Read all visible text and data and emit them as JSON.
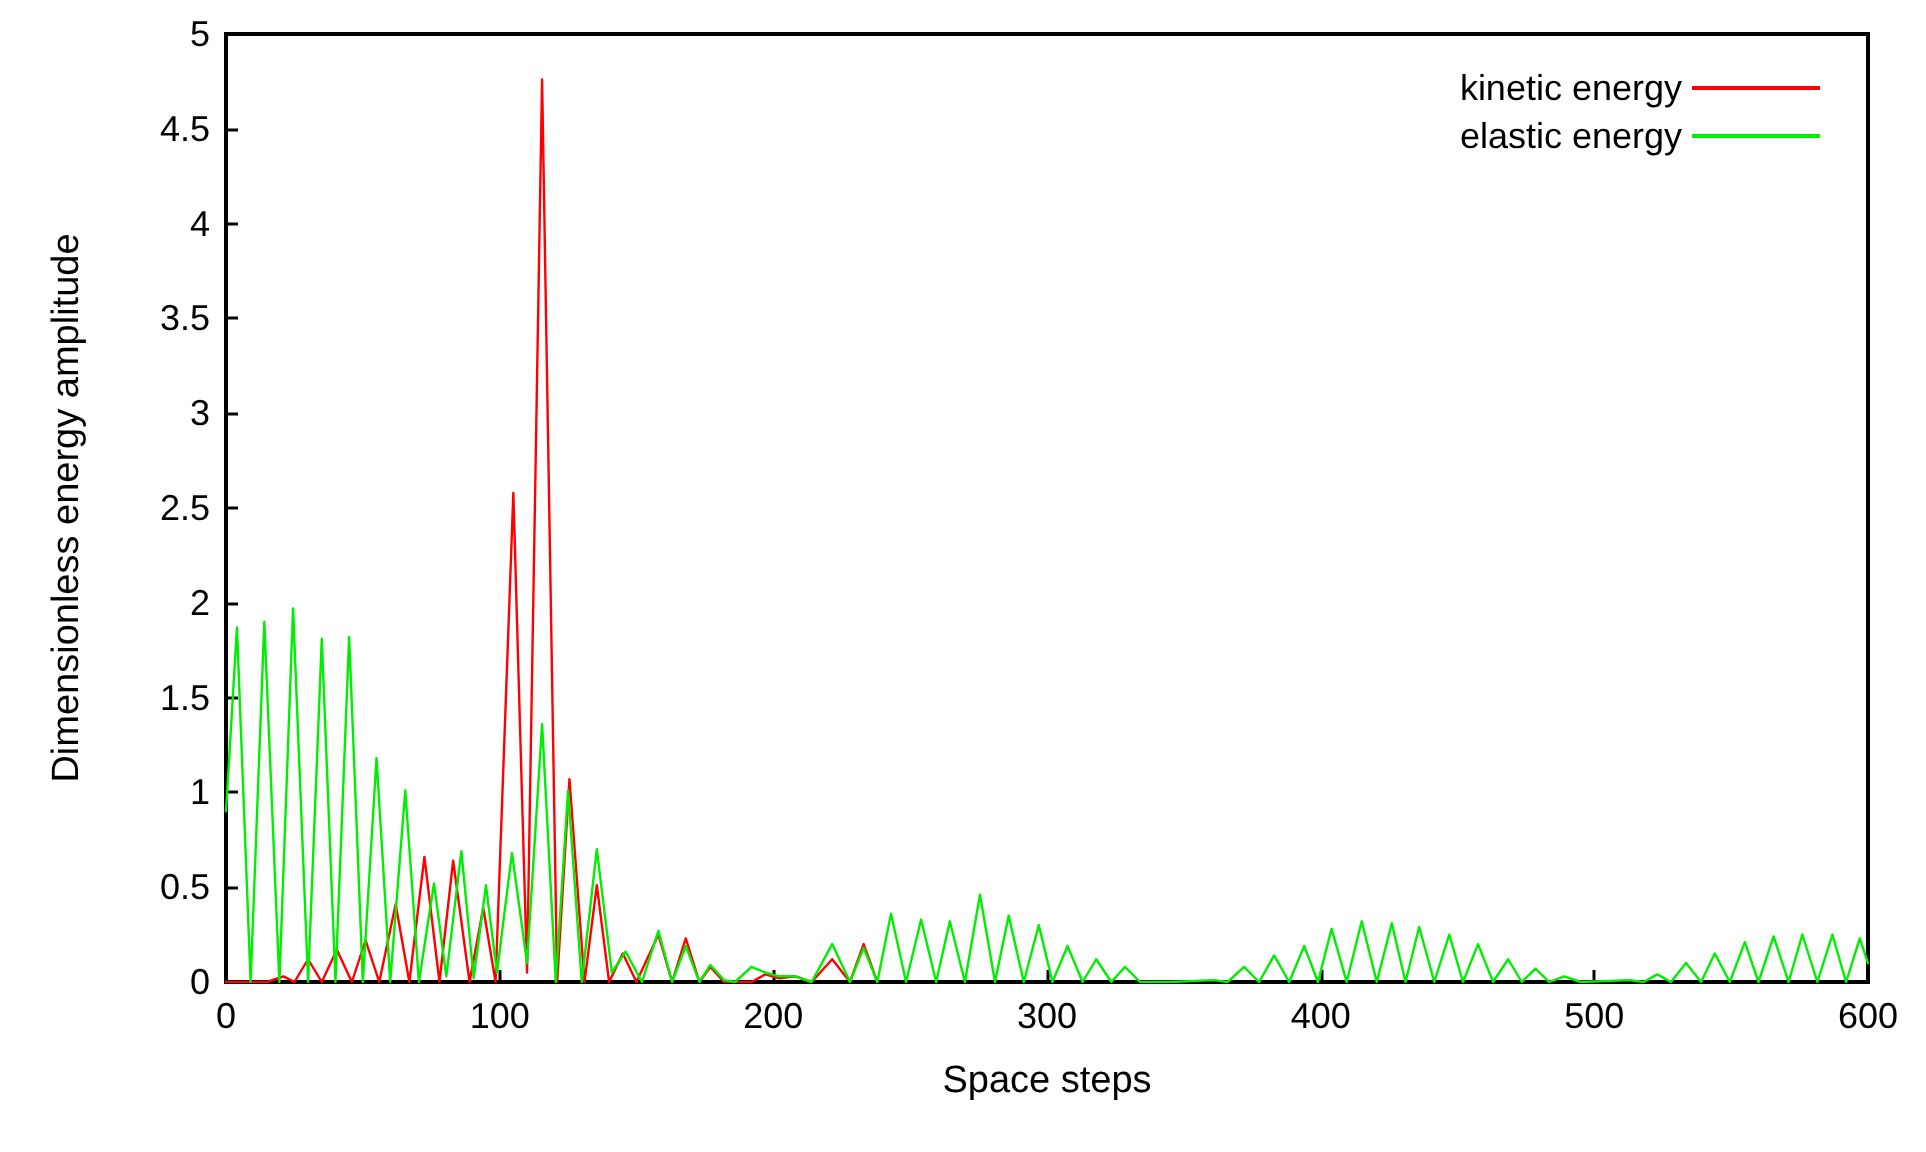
{
  "chart_data": {
    "type": "line",
    "xlabel": "Space steps",
    "ylabel": "Dimensionless energy amplitude",
    "xlim": [
      0,
      600
    ],
    "xticks": [
      0,
      100,
      200,
      300,
      400,
      500,
      600
    ],
    "ylim": [
      0,
      5
    ],
    "yticks": [
      0,
      0.5,
      1,
      1.5,
      2,
      2.5,
      3,
      3.5,
      4,
      4.5,
      5
    ],
    "grid": false,
    "legend": "top right",
    "marker": "none",
    "line_style": "solid",
    "series": [
      {
        "name": "kinetic energy",
        "color": "#ff0000",
        "x": [
          0,
          15,
          21,
          25,
          30,
          35,
          40.5,
          46,
          51,
          56,
          62,
          67,
          72.5,
          78,
          83,
          89,
          94,
          98.5,
          105,
          110,
          115.5,
          121,
          125.5,
          131,
          135.5,
          140,
          145,
          150,
          158,
          163,
          168,
          173,
          177,
          182,
          192,
          197,
          202,
          208,
          214,
          221.5,
          228,
          233,
          238
        ],
        "values": [
          0,
          0,
          0.03,
          0,
          0.12,
          0,
          0.17,
          0,
          0.22,
          0,
          0.41,
          0,
          0.66,
          0,
          0.64,
          0,
          0.39,
          0,
          2.58,
          0.05,
          4.76,
          0,
          1.07,
          0,
          0.51,
          0,
          0.15,
          0,
          0.25,
          0,
          0.23,
          0,
          0.08,
          0,
          0,
          0.04,
          0.02,
          0.03,
          0,
          0.12,
          0,
          0.2,
          0
        ]
      },
      {
        "name": "elastic energy",
        "color": "#00ee00",
        "x": [
          0,
          4,
          9,
          14,
          19.5,
          24.5,
          30,
          35,
          40,
          45,
          50,
          55,
          60,
          65.5,
          70.5,
          76,
          80.5,
          86,
          90.5,
          95,
          99,
          104.5,
          110,
          115.5,
          120.5,
          125,
          130,
          135.5,
          141,
          146,
          152,
          158,
          163,
          168,
          173,
          177,
          182,
          186,
          192,
          197,
          202,
          208,
          214,
          221.5,
          228,
          233,
          238,
          243,
          248.5,
          254,
          259.5,
          264.5,
          270,
          275.5,
          281,
          286,
          291.5,
          297,
          302,
          307.5,
          313,
          318,
          323.5,
          328.5,
          334,
          345,
          361,
          366,
          372,
          377.5,
          383,
          388.5,
          394,
          399,
          404,
          409.5,
          415,
          420.5,
          426,
          431,
          436,
          441.5,
          447,
          452,
          457.5,
          463,
          468.5,
          473.5,
          478.5,
          483.5,
          489,
          495,
          513,
          518,
          523,
          528,
          533.5,
          539,
          544,
          549.5,
          555,
          560,
          565.5,
          571,
          576,
          581.5,
          587,
          592,
          597,
          600
        ],
        "values": [
          0.9,
          1.87,
          0,
          1.9,
          0,
          1.97,
          0,
          1.81,
          0,
          1.82,
          0,
          1.18,
          0,
          1.01,
          0,
          0.52,
          0.03,
          0.69,
          0.02,
          0.51,
          0.05,
          0.68,
          0.1,
          1.36,
          0,
          1.01,
          0,
          0.7,
          0.05,
          0.16,
          0,
          0.27,
          0,
          0.19,
          0,
          0.09,
          0.01,
          0,
          0.08,
          0.05,
          0.03,
          0.03,
          0,
          0.2,
          0,
          0.18,
          0,
          0.36,
          0,
          0.33,
          0,
          0.32,
          0,
          0.46,
          0,
          0.35,
          0,
          0.3,
          0,
          0.19,
          0,
          0.12,
          0,
          0.08,
          0,
          0,
          0.01,
          0,
          0.08,
          0,
          0.14,
          0,
          0.19,
          0,
          0.28,
          0,
          0.32,
          0,
          0.31,
          0,
          0.29,
          0,
          0.25,
          0,
          0.2,
          0,
          0.12,
          0,
          0.07,
          0,
          0.03,
          0,
          0.01,
          0,
          0.04,
          0,
          0.1,
          0,
          0.15,
          0,
          0.21,
          0,
          0.24,
          0,
          0.25,
          0,
          0.25,
          0,
          0.23,
          0.1
        ]
      }
    ]
  }
}
